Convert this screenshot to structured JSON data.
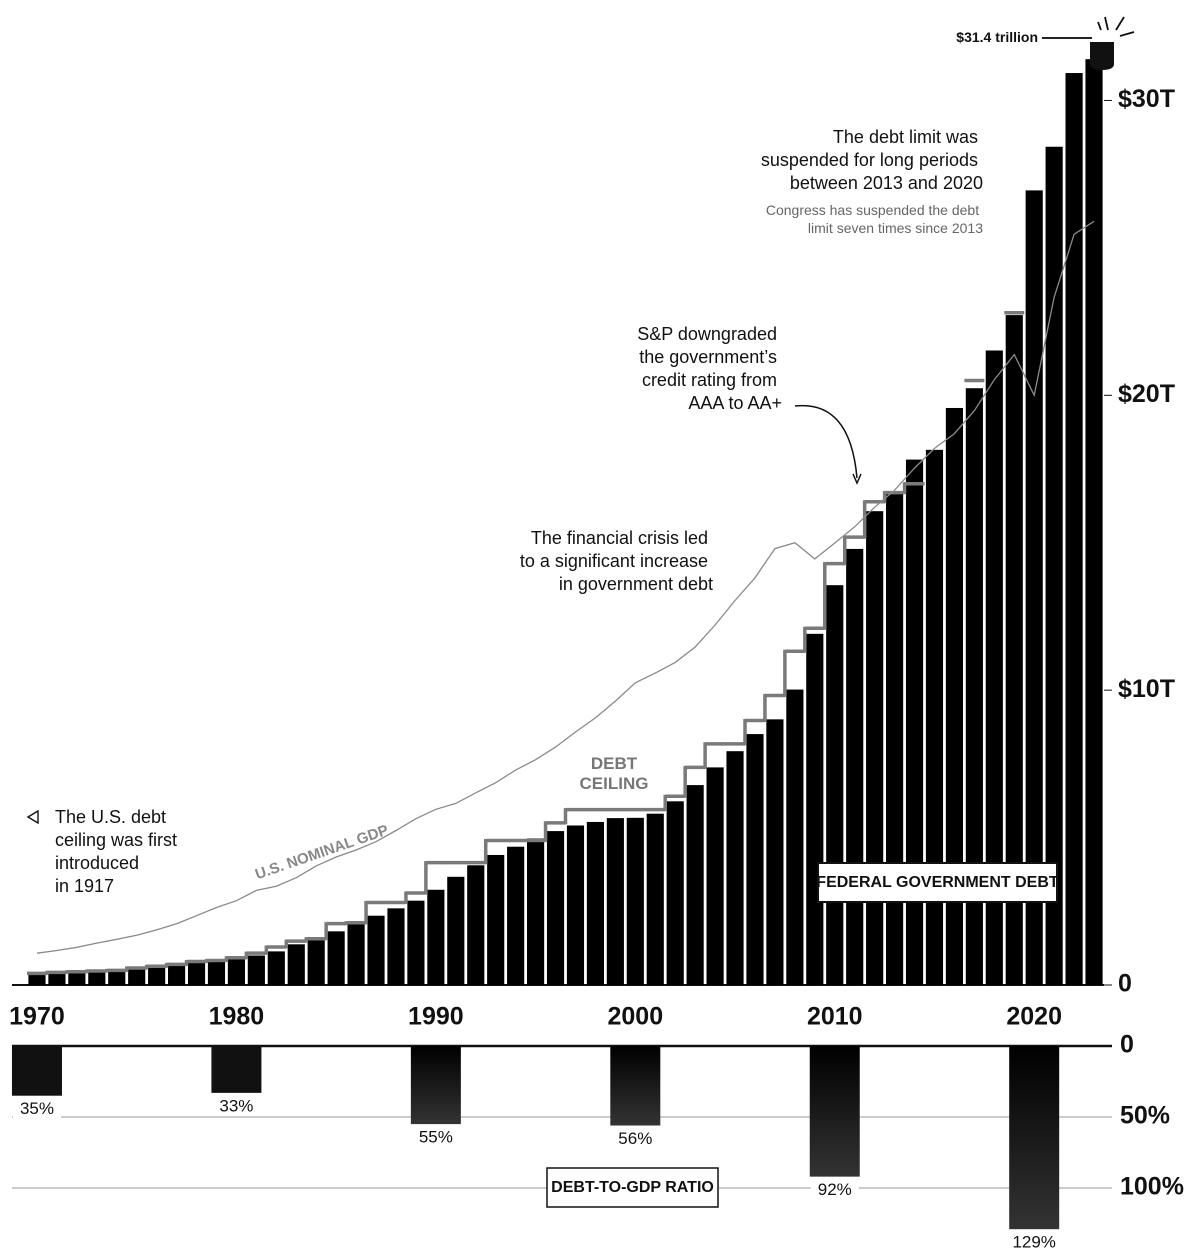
{
  "chart_data": [
    {
      "type": "bar",
      "x": [
        1970,
        1971,
        1972,
        1973,
        1974,
        1975,
        1976,
        1977,
        1978,
        1979,
        1980,
        1981,
        1982,
        1983,
        1984,
        1985,
        1986,
        1987,
        1988,
        1989,
        1990,
        1991,
        1992,
        1993,
        1994,
        1995,
        1996,
        1997,
        1998,
        1999,
        2000,
        2001,
        2002,
        2003,
        2004,
        2005,
        2006,
        2007,
        2008,
        2009,
        2010,
        2011,
        2012,
        2013,
        2014,
        2015,
        2016,
        2017,
        2018,
        2019,
        2020,
        2021,
        2022,
        2023
      ],
      "xlim": [
        1969.5,
        2023.5
      ],
      "xticks": [
        1970,
        1980,
        1990,
        2000,
        2010,
        2020
      ],
      "ylim": [
        0,
        33
      ],
      "yticks": [
        0,
        {
          "value": 10,
          "label": "$10T"
        },
        {
          "value": 20,
          "label": "$20T"
        },
        {
          "value": 30,
          "label": "$30T"
        }
      ],
      "series": [
        {
          "name": "FEDERAL GOVERNMENT DEBT",
          "kind": "bar",
          "color": "#000000",
          "values": [
            0.37,
            0.4,
            0.43,
            0.46,
            0.48,
            0.54,
            0.63,
            0.71,
            0.78,
            0.83,
            0.91,
            1.0,
            1.14,
            1.38,
            1.57,
            1.82,
            2.13,
            2.35,
            2.6,
            2.86,
            3.23,
            3.67,
            4.06,
            4.41,
            4.69,
            4.97,
            5.22,
            5.41,
            5.53,
            5.66,
            5.67,
            5.81,
            6.23,
            6.78,
            7.38,
            7.93,
            8.51,
            9.01,
            10.02,
            11.91,
            13.56,
            14.79,
            16.07,
            16.74,
            17.82,
            18.15,
            19.57,
            20.24,
            21.52,
            22.72,
            26.95,
            28.43,
            30.93,
            31.4
          ]
        },
        {
          "name": "DEBT CEILING",
          "kind": "step",
          "color": "#7a7a7a",
          "values": [
            0.395,
            0.43,
            0.45,
            0.475,
            0.495,
            0.577,
            0.636,
            0.7,
            0.798,
            0.83,
            0.925,
            1.08,
            1.29,
            1.49,
            1.57,
            2.08,
            2.11,
            2.8,
            2.8,
            3.12,
            4.15,
            4.15,
            4.15,
            4.9,
            4.9,
            4.9,
            5.5,
            5.95,
            5.95,
            5.95,
            5.95,
            5.95,
            6.4,
            7.38,
            8.18,
            8.18,
            8.97,
            9.82,
            11.32,
            12.1,
            14.29,
            15.19,
            16.39,
            16.7,
            17.0,
            null,
            null,
            20.5,
            null,
            22.8,
            null,
            null,
            null,
            null
          ]
        },
        {
          "name": "U.S. NOMINAL GDP",
          "kind": "line",
          "color": "#8a8a8a",
          "values": [
            1.08,
            1.17,
            1.28,
            1.42,
            1.55,
            1.69,
            1.87,
            2.08,
            2.35,
            2.63,
            2.86,
            3.21,
            3.35,
            3.64,
            4.04,
            4.34,
            4.58,
            4.86,
            5.24,
            5.64,
            5.96,
            6.16,
            6.52,
            6.86,
            7.29,
            7.64,
            8.07,
            8.58,
            9.06,
            9.63,
            10.25,
            10.58,
            10.94,
            11.46,
            12.21,
            13.04,
            13.81,
            14.8,
            15.0,
            14.45,
            14.99,
            15.54,
            16.2,
            16.78,
            17.53,
            18.2,
            18.7,
            19.48,
            20.53,
            21.38,
            20.0,
            23.32,
            25.46,
            25.9
          ]
        }
      ],
      "annotations": [
        {
          "lines": [
            "$31.4 trillion"
          ]
        },
        {
          "lines": [
            "The debt limit was",
            "suspended for long periods",
            "between 2013 and 2020"
          ]
        },
        {
          "lines": [
            "Congress has suspended the debt",
            "limit seven times since 2013"
          ]
        },
        {
          "lines": [
            "S&P downgraded",
            "the government’s",
            "credit rating from",
            "AAA to AA+"
          ]
        },
        {
          "lines": [
            "The financial crisis led",
            "to a significant increase",
            "in government debt"
          ]
        },
        {
          "lines": [
            "The U.S. debt",
            "ceiling was first",
            "introduced",
            "in 1917"
          ]
        }
      ]
    },
    {
      "type": "bar",
      "title": "DEBT-TO-GDP RATIO",
      "x": [
        1970,
        1980,
        1990,
        2000,
        2010,
        2020
      ],
      "xlim": [
        1969.5,
        2023.5
      ],
      "ylim": [
        0,
        130
      ],
      "yticks": [
        0,
        {
          "value": 50,
          "label": "50%"
        },
        {
          "value": 100,
          "label": "100%"
        }
      ],
      "grid": true,
      "color": "#111111",
      "values": [
        35,
        33,
        55,
        56,
        92,
        129
      ],
      "value_labels": [
        "35%",
        "33%",
        "55%",
        "56%",
        "92%",
        "129%"
      ]
    }
  ]
}
